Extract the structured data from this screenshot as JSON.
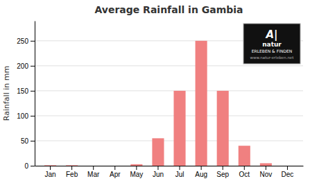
{
  "chart_data": {
    "type": "bar",
    "title": "Average Rainfall in Gambia",
    "ylabel": "Rainfall in mm",
    "categories": [
      "Jan",
      "Feb",
      "Mar",
      "Apr",
      "May",
      "Jun",
      "Jul",
      "Aug",
      "Sep",
      "Oct",
      "Nov",
      "Dec"
    ],
    "values": [
      1,
      1,
      0,
      0,
      3,
      55,
      150,
      250,
      150,
      40,
      5,
      0
    ],
    "color": "#f08080",
    "ylim": [
      0,
      290
    ],
    "yticks": [
      0,
      50,
      100,
      150,
      200,
      250
    ],
    "grid": true,
    "annotations": [
      "A|",
      "natur",
      "ERLEBEN & FINDEN",
      "www.natur-erleben.net"
    ]
  }
}
